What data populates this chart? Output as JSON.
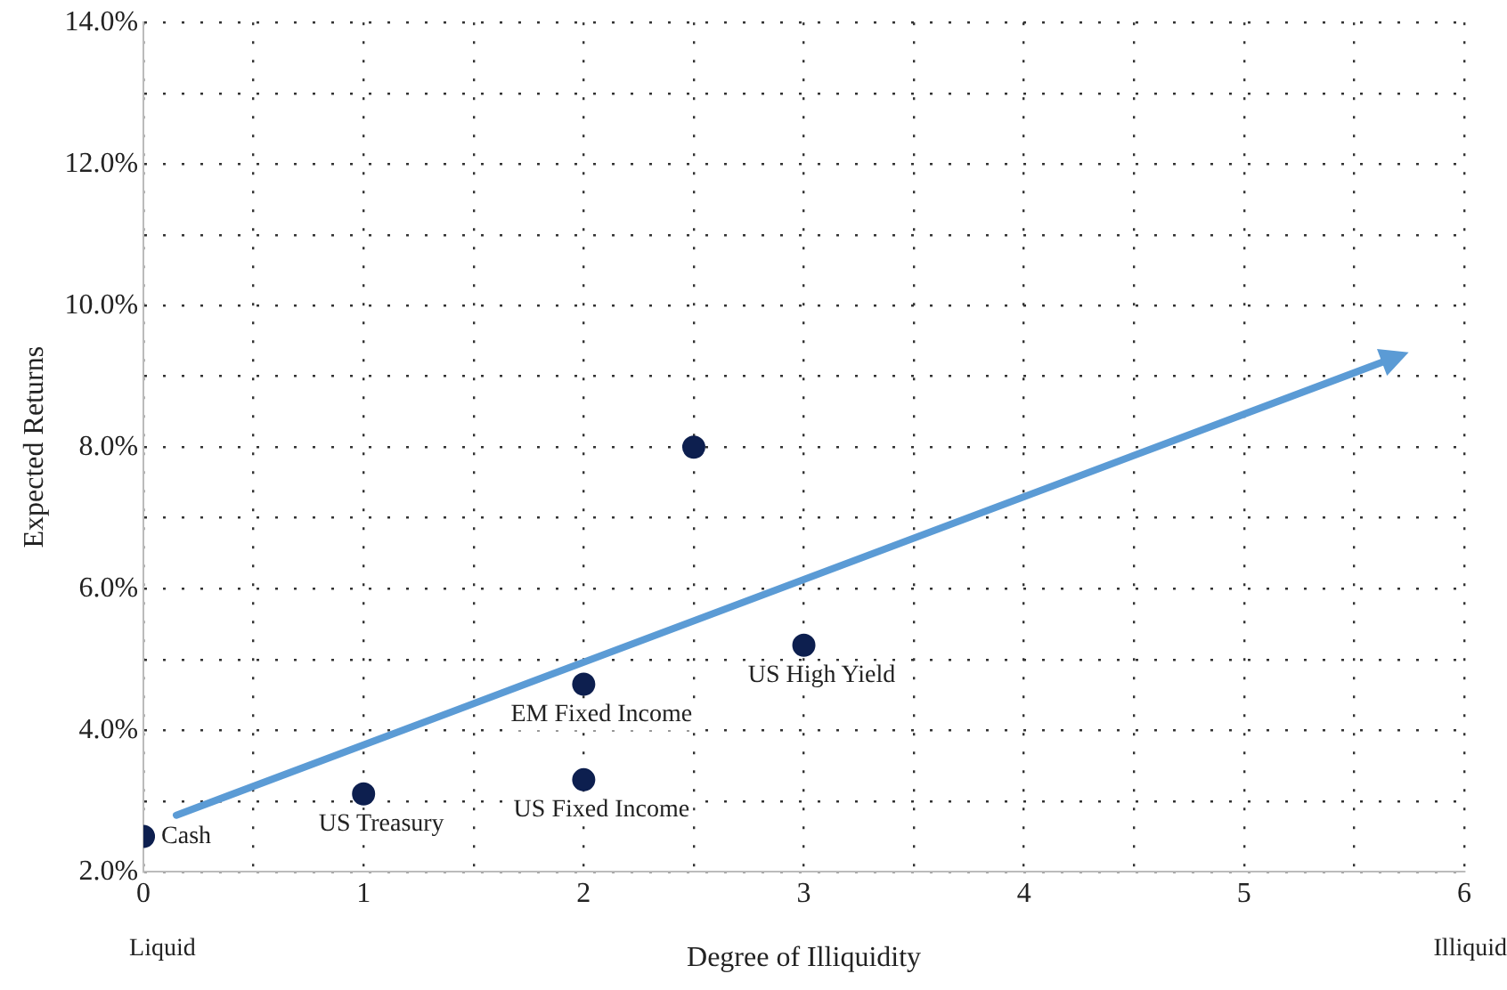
{
  "chart_data": {
    "type": "scatter",
    "xlabel": "Degree of Illiquidity",
    "ylabel": "Expected Returns",
    "series": [
      {
        "type": "scatter",
        "color": "#0d1f4f",
        "x": [
          0,
          1,
          2,
          2,
          3,
          2.5
        ],
        "values": [
          2.5,
          3.1,
          3.3,
          4.65,
          5.2,
          8.0
        ]
      }
    ],
    "xlim": [
      0,
      6
    ],
    "xticks": [
      0,
      {
        "value": 0.5,
        "label": null
      },
      1,
      {
        "value": 1.5,
        "label": null
      },
      2,
      {
        "value": 2.5,
        "label": null
      },
      3,
      {
        "value": 3.5,
        "label": null
      },
      4,
      {
        "value": 4.5,
        "label": null
      },
      5,
      {
        "value": 5.5,
        "label": null
      },
      6
    ],
    "ylim": [
      2,
      14
    ],
    "yticks": [
      {
        "value": 2,
        "label": "2.0%"
      },
      {
        "value": 3,
        "label": null
      },
      {
        "value": 4,
        "label": "4.0%"
      },
      {
        "value": 5,
        "label": null
      },
      {
        "value": 6,
        "label": "6.0%"
      },
      {
        "value": 7,
        "label": null
      },
      {
        "value": 8,
        "label": "8.0%"
      },
      {
        "value": 9,
        "label": null
      },
      {
        "value": 10,
        "label": "10.0%"
      },
      {
        "value": 11,
        "label": null
      },
      {
        "value": 12,
        "label": "12.0%"
      },
      {
        "value": 13,
        "label": null
      },
      {
        "value": 14,
        "label": "14.0%"
      }
    ],
    "grid": true,
    "legend": false,
    "marker": "circle",
    "annotations": [
      {
        "text": "Cash",
        "x": 0,
        "y": 2.5
      },
      {
        "text": "US Treasury",
        "x": 1,
        "y": 3.1
      },
      {
        "text": "US Fixed Income",
        "x": 2,
        "y": 3.3
      },
      {
        "text": "EM Fixed Income",
        "x": 2,
        "y": 4.65
      },
      {
        "text": "US High Yield",
        "x": 3,
        "y": 5.2
      },
      "Liquid",
      "Illiquid"
    ]
  }
}
